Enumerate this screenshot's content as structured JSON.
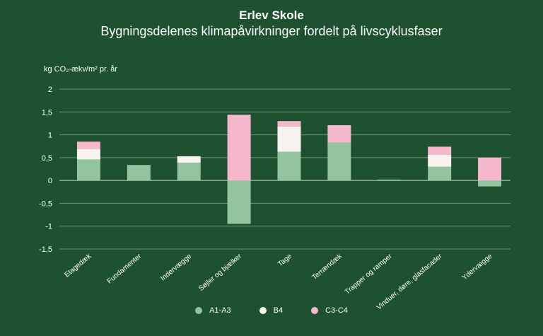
{
  "chart_data": {
    "type": "bar",
    "stacked": true,
    "title": "Erlev Skole",
    "subtitle": "Bygningsdelenes klimapåvirkninger fordelt på livscyklusfaser",
    "ylabel": "kg CO₂-ækv/m² pr. år",
    "ylim": [
      -1.5,
      2
    ],
    "yticks": [
      2,
      1.5,
      1,
      0.5,
      0,
      -0.5,
      -1,
      -1.5
    ],
    "ytick_labels": [
      "2",
      "1,5",
      "1",
      "0,5",
      "0",
      "-0,5",
      "-1",
      "-1,5"
    ],
    "grid": true,
    "legend_position": "bottom",
    "categories": [
      "Etagedæk",
      "Fundamenter",
      "Indervægge",
      "Søjler og bjælker",
      "Tage",
      "Terrændæk",
      "Trapper og ramper",
      "Vinduer, døre, glasfacader",
      "Ydervægge"
    ],
    "series": [
      {
        "name": "A1-A3",
        "color": "#93c49f",
        "values": [
          0.46,
          0.34,
          0.39,
          -0.95,
          0.63,
          0.83,
          0.02,
          0.3,
          -0.13
        ]
      },
      {
        "name": "B4",
        "color": "#f8f3ef",
        "values": [
          0.23,
          0.0,
          0.14,
          0.0,
          0.55,
          0.0,
          0.0,
          0.26,
          0.0
        ]
      },
      {
        "name": "C3-C4",
        "color": "#f5b8cc",
        "values": [
          0.16,
          0.0,
          0.0,
          1.44,
          0.12,
          0.38,
          0.0,
          0.18,
          0.5
        ]
      }
    ]
  }
}
